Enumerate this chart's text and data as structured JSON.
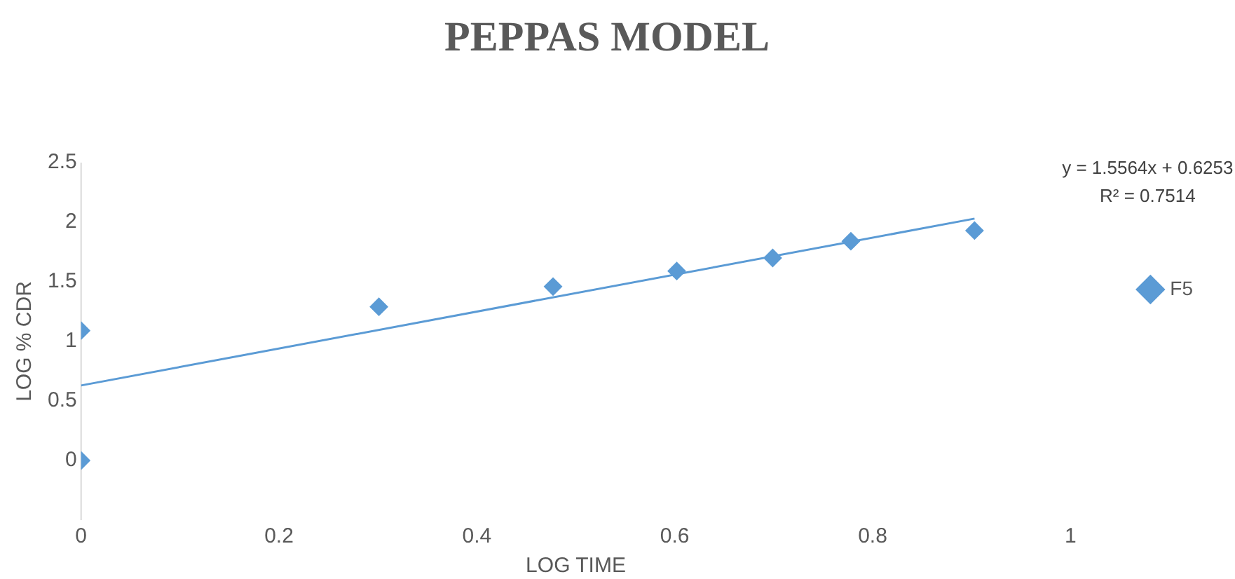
{
  "chart_data": {
    "type": "scatter",
    "title": "PEPPAS MODEL",
    "xlabel": "LOG TIME",
    "ylabel": "LOG % CDR",
    "series": [
      {
        "name": "F5",
        "color": "#5b9bd5",
        "x": [
          0,
          0,
          0.301,
          0.477,
          0.602,
          0.699,
          0.778,
          0.903
        ],
        "values": [
          0,
          1.09,
          1.29,
          1.46,
          1.59,
          1.7,
          1.84,
          1.93
        ]
      },
      {
        "type": "line",
        "marker": "none",
        "color": "#5b9bd5",
        "x": [
          0,
          0.903
        ],
        "values": [
          0.63,
          2.03
        ]
      }
    ],
    "xlim": [
      0,
      1
    ],
    "xticks": [
      0,
      0.2,
      0.4,
      0.6,
      0.8,
      1
    ],
    "ylim": [
      -0.5,
      2.5
    ],
    "yticks": [
      0,
      0.5,
      1,
      1.5,
      2,
      2.5
    ],
    "annotations": [
      "y = 1.5564x + 0.6253",
      "R² = 0.7514"
    ],
    "marker": "diamond",
    "grid": false,
    "legend": "right"
  }
}
